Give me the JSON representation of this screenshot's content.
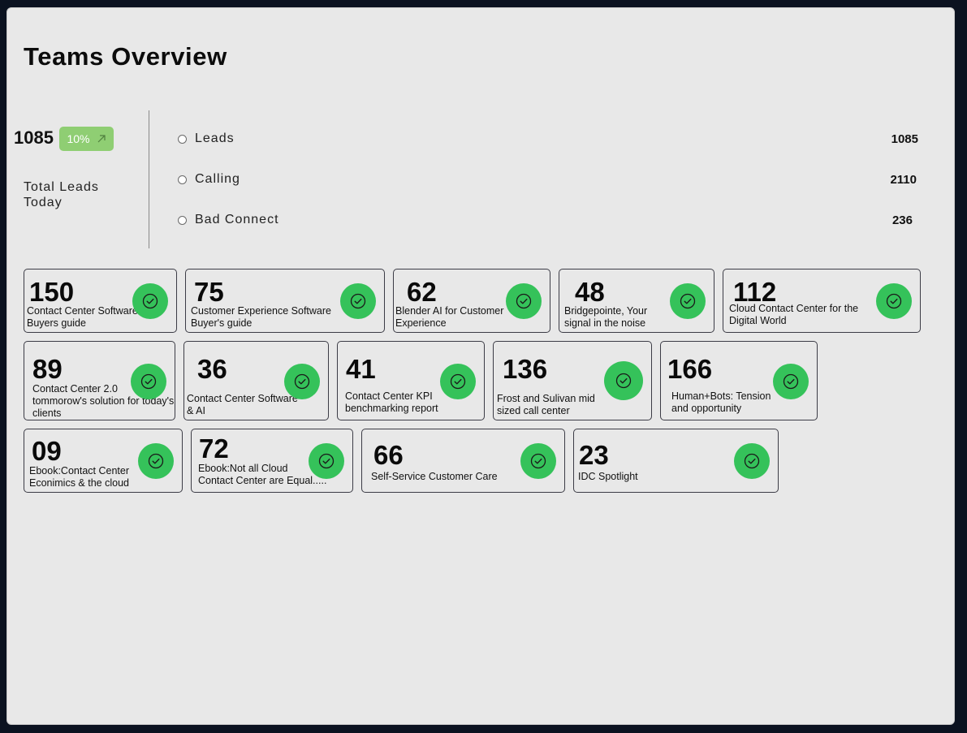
{
  "page": {
    "title": "Teams Overview"
  },
  "summary": {
    "total": "1085",
    "change": "10%",
    "change_icon": "arrow-up-right-icon",
    "label": "Total Leads Today"
  },
  "stats": [
    {
      "label": "Leads",
      "value": "1085"
    },
    {
      "label": "Calling",
      "value": "2110"
    },
    {
      "label": "Bad Connect",
      "value": "236"
    }
  ],
  "colors": {
    "accent_green": "#35c25a",
    "badge_green": "#8fce73",
    "panel_bg": "#e8e8e8",
    "frame_bg": "#0b1220"
  },
  "cards": [
    {
      "value": "150",
      "label": [
        "Contact Center Software",
        "Buyers guide"
      ],
      "icon": "check-circle-icon"
    },
    {
      "value": "75",
      "label": [
        "Customer Experience Software",
        "Buyer's guide"
      ],
      "icon": "check-circle-icon"
    },
    {
      "value": "62",
      "label": [
        "Blender AI for Customer",
        "Experience"
      ],
      "icon": "check-circle-icon"
    },
    {
      "value": "48",
      "label": [
        "Bridgepointe, Your",
        "signal in the noise"
      ],
      "icon": "check-circle-icon"
    },
    {
      "value": "112",
      "label": [
        "Cloud Contact Center for the",
        "Digital World"
      ],
      "icon": "check-circle-icon"
    },
    {
      "value": "89",
      "label": [
        "Contact Center 2.0",
        "tommorow's solution for today's",
        "clients"
      ],
      "icon": "check-circle-icon"
    },
    {
      "value": "36",
      "label": [
        "Contact Center Software",
        "& AI"
      ],
      "icon": "check-circle-icon"
    },
    {
      "value": "41",
      "label": [
        "Contact Center KPI",
        "benchmarking report"
      ],
      "icon": "check-circle-icon"
    },
    {
      "value": "136",
      "label": [
        "Frost and Sulivan mid",
        "sized call center"
      ],
      "icon": "check-circle-icon"
    },
    {
      "value": "166",
      "label": [
        "Human+Bots: Tension",
        "and opportunity"
      ],
      "icon": "check-circle-icon"
    },
    {
      "value": "09",
      "label": [
        "Ebook:Contact Center",
        "Econimics & the cloud"
      ],
      "icon": "check-circle-icon"
    },
    {
      "value": "72",
      "label": [
        "Ebook:Not all Cloud",
        "Contact Center are Equal....."
      ],
      "icon": "check-circle-icon"
    },
    {
      "value": "66",
      "label": [
        "Self-Service Customer Care"
      ],
      "icon": "check-circle-icon"
    },
    {
      "value": "23",
      "label": [
        "IDC Spotlight"
      ],
      "icon": "check-circle-icon"
    }
  ]
}
